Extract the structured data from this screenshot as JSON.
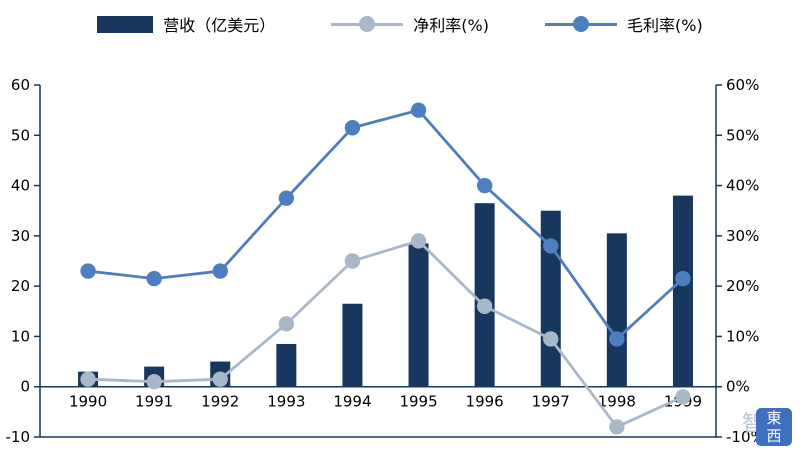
{
  "legend": {
    "items": [
      {
        "label": "营收（亿美元）",
        "marker": "bar",
        "color": "#17375E"
      },
      {
        "label": "净利率(%)",
        "marker": "line-dot",
        "color": "#A9B8C8"
      },
      {
        "label": "毛利率(%)",
        "marker": "line-dot",
        "color": "#4D7EBF"
      }
    ]
  },
  "chart_data": {
    "type": "combo",
    "title": "",
    "xlabel": "",
    "ylabel": "",
    "categories": [
      "1990",
      "1991",
      "1992",
      "1993",
      "1994",
      "1995",
      "1996",
      "1997",
      "1998",
      "1999"
    ],
    "series": [
      {
        "name": "营收（亿美元）",
        "type": "bar",
        "axis": "left",
        "color": "#17375E",
        "values": [
          3,
          4,
          5,
          8.5,
          16.5,
          28.5,
          36.5,
          35,
          30.5,
          38
        ]
      },
      {
        "name": "净利率(%)",
        "type": "line",
        "axis": "right",
        "color": "#A9B8C8",
        "values": [
          1.5,
          1,
          1.5,
          12.5,
          25,
          29,
          16,
          9.5,
          -8,
          -2
        ]
      },
      {
        "name": "毛利率(%)",
        "type": "line",
        "axis": "right",
        "color": "#4D7EBF",
        "values": [
          23,
          21.5,
          23,
          37.5,
          51.5,
          55,
          40,
          28,
          9.5,
          21.5
        ]
      }
    ],
    "left_axis": {
      "min": -10,
      "max": 60,
      "step": 10,
      "tick_labels": [
        "60",
        "50",
        "40",
        "30",
        "20",
        "10",
        "0",
        "-10"
      ]
    },
    "right_axis": {
      "min": -10,
      "max": 60,
      "step": 10,
      "tick_labels": [
        "60%",
        "50%",
        "40%",
        "30%",
        "20%",
        "10%",
        "0%",
        "-10%"
      ]
    },
    "grid": false,
    "legend_position": "top",
    "frame_color": "#17375E"
  },
  "watermark": {
    "ghost": "智",
    "line1": "東",
    "line2": "西"
  }
}
